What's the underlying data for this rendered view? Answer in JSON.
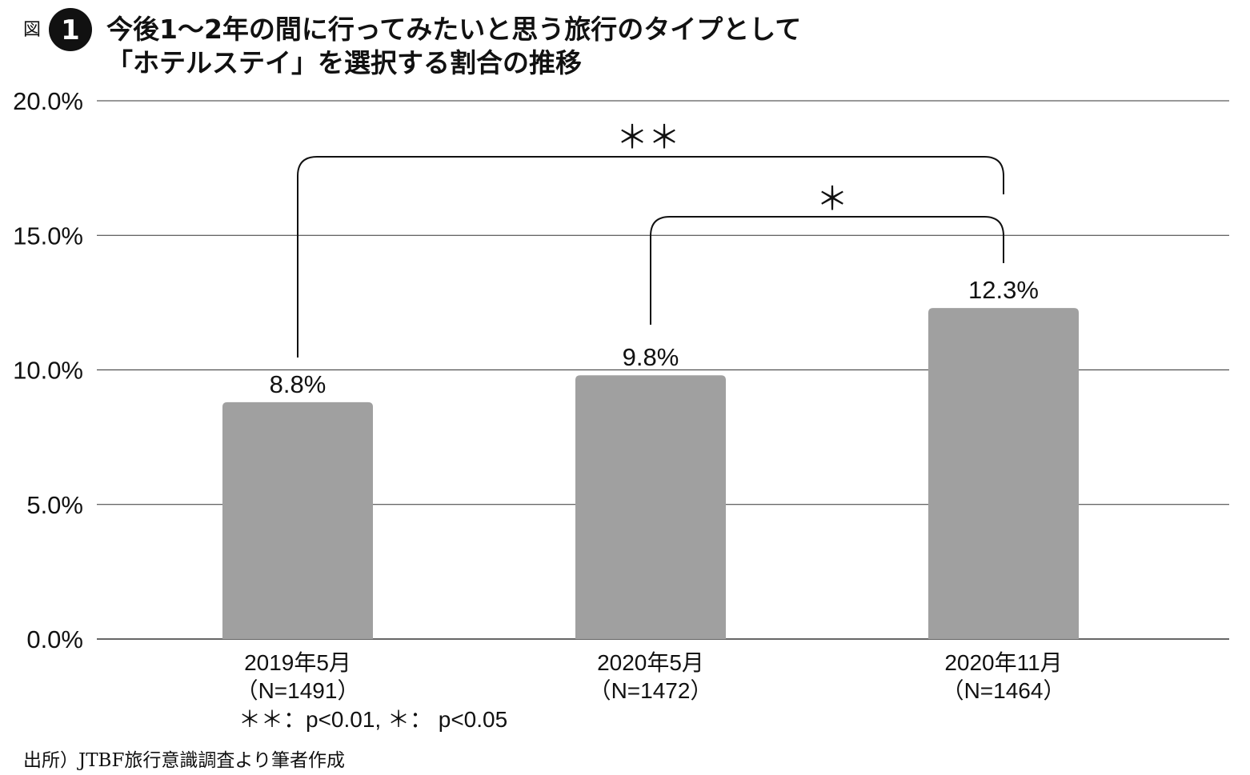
{
  "figure": {
    "label": "図",
    "number": "1",
    "title_line1": "今後1〜2年の間に行ってみたいと思う旅行のタイプとして",
    "title_line2": "「ホテルステイ」を選択する割合の推移"
  },
  "chart_data": {
    "type": "bar",
    "categories": [
      "2019年5月",
      "2020年5月",
      "2020年11月"
    ],
    "category_sublabels": [
      "（N=1491）",
      "（N=1472）",
      "（N=1464）"
    ],
    "values": [
      8.8,
      9.8,
      12.3
    ],
    "value_labels": [
      "8.8%",
      "9.8%",
      "12.3%"
    ],
    "yticks": [
      0,
      5,
      10,
      15,
      20
    ],
    "ytick_labels": [
      "0.0%",
      "5.0%",
      "10.0%",
      "15.0%",
      "20.0%"
    ],
    "ylim": [
      0,
      20
    ],
    "grid": true,
    "bar_color": "#a0a0a0",
    "significance": [
      {
        "from": 0,
        "to": 2,
        "mark": "＊＊"
      },
      {
        "from": 1,
        "to": 2,
        "mark": "＊"
      }
    ],
    "significance_note": "＊＊：p<0.01, ＊： p<0.05",
    "source": "出所）JTBF旅行意識調査より筆者作成"
  }
}
